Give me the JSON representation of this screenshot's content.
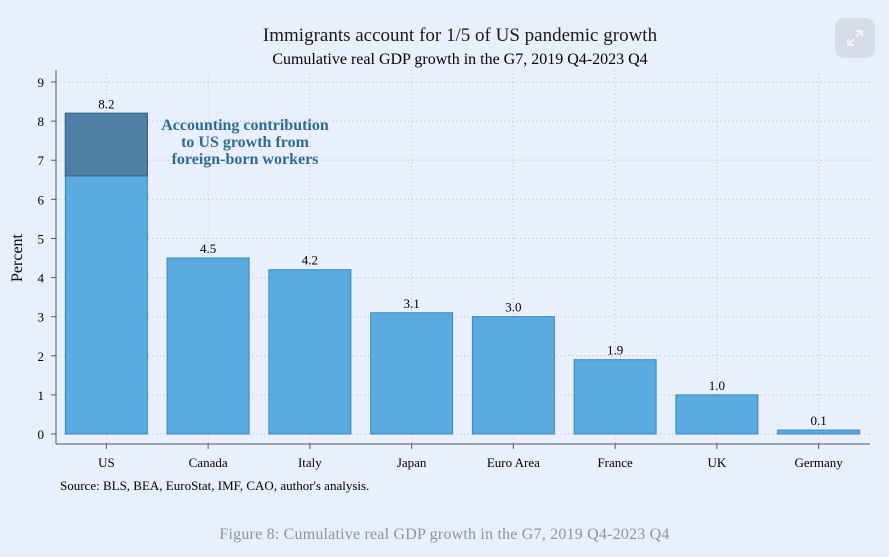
{
  "chart_data": {
    "type": "bar",
    "title": "Immigrants account for 1/5 of US pandemic growth",
    "subtitle": "Cumulative real GDP growth in the G7, 2019 Q4-2023 Q4",
    "ylabel": "Percent",
    "xlabel": "",
    "ylim": [
      0,
      9
    ],
    "yticks": [
      "0",
      "1",
      "2",
      "3",
      "4",
      "5",
      "6",
      "7",
      "8",
      "9"
    ],
    "grid": true,
    "categories": [
      "US",
      "Canada",
      "Italy",
      "Japan",
      "Euro Area",
      "France",
      "UK",
      "Germany"
    ],
    "values": [
      8.2,
      4.5,
      4.2,
      3.1,
      3.0,
      1.9,
      1.0,
      0.1
    ],
    "data_labels": [
      "8.2",
      "4.5",
      "4.2",
      "3.1",
      "3.0",
      "1.9",
      "1.0",
      "0.1"
    ],
    "us_foreign_born_contribution": 1.6,
    "annotation": [
      "Accounting contribution",
      "to US growth from",
      "foreign-born workers"
    ],
    "source": "Source: BLS, BEA, EuroStat, IMF, CAO, author's analysis.",
    "colors": {
      "bar": "#5aabdf",
      "bar_edge": "#3a86b8",
      "highlight": "#4e80a5",
      "annotation": "#2c6d96"
    }
  },
  "caption": "Figure 8: Cumulative real GDP growth in the G7, 2019 Q4-2023 Q4",
  "expand_icon": "expand-arrows-icon"
}
